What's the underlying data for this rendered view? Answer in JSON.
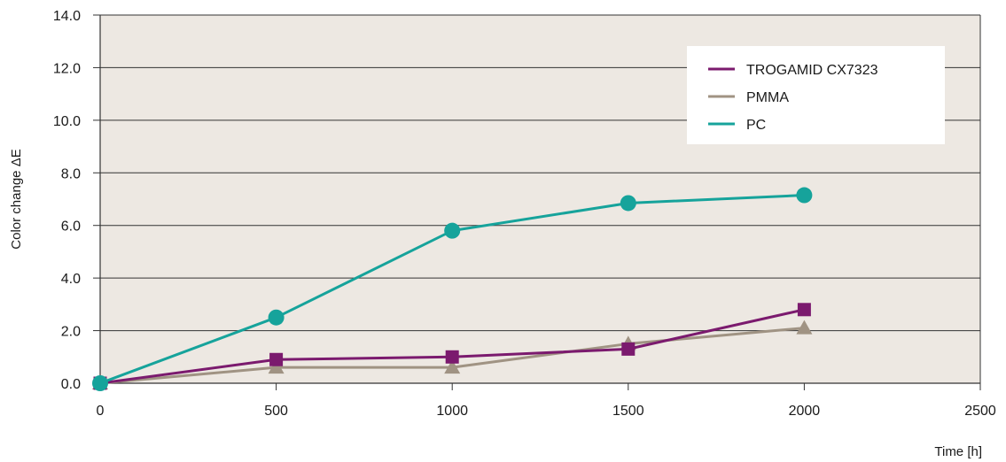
{
  "chart_data": {
    "type": "line",
    "title": "",
    "ylabel": "Color change ΔE",
    "xlabel": "Time [h]",
    "xlim": [
      0,
      2500
    ],
    "ylim": [
      0,
      14
    ],
    "xticks": [
      0,
      500,
      1000,
      1500,
      2000,
      2500
    ],
    "yticks": [
      0,
      2,
      4,
      6,
      8,
      10,
      12,
      14
    ],
    "x_tick_labels": [
      "0",
      "500",
      "1000",
      "1500",
      "2000",
      "2500"
    ],
    "y_tick_labels": [
      "0.0",
      "2.0",
      "4.0",
      "6.0",
      "8.0",
      "10.0",
      "12.0",
      "14.0"
    ],
    "grid": "horizontal",
    "legend_position": "top-right",
    "plot_background": "#ede8e2",
    "series": [
      {
        "name": "TROGAMID CX7323",
        "color": "#7b1a6e",
        "marker": "square",
        "x": [
          0,
          500,
          1000,
          1500,
          2000
        ],
        "y": [
          0.0,
          0.9,
          1.0,
          1.3,
          2.8
        ]
      },
      {
        "name": "PMMA",
        "color": "#a09383",
        "marker": "triangle",
        "x": [
          0,
          500,
          1000,
          1500,
          2000
        ],
        "y": [
          0.0,
          0.6,
          0.6,
          1.5,
          2.1
        ]
      },
      {
        "name": "PC",
        "color": "#16a39b",
        "marker": "circle",
        "x": [
          0,
          500,
          1000,
          1500,
          2000
        ],
        "y": [
          0.0,
          2.5,
          5.8,
          6.85,
          7.15
        ]
      }
    ]
  }
}
